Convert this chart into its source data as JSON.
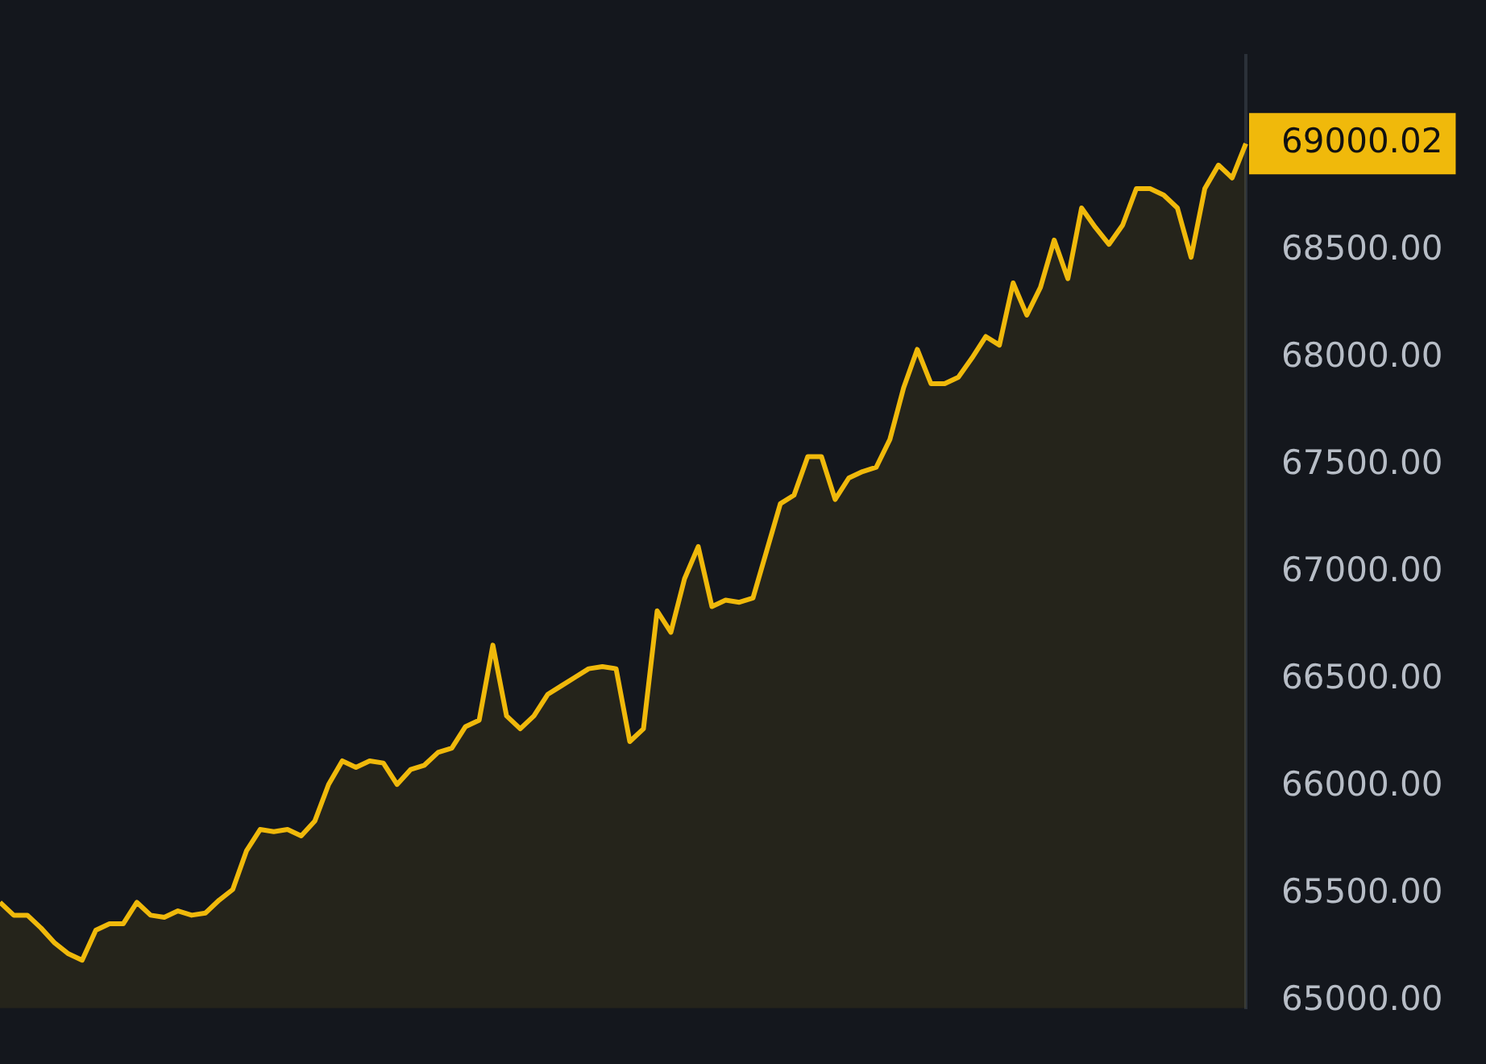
{
  "chart_data": {
    "type": "area",
    "categories": [
      null,
      null,
      null,
      null,
      null,
      null,
      null,
      null,
      null,
      null,
      null,
      null,
      null,
      null,
      null,
      null,
      null,
      null,
      null,
      null,
      null,
      null,
      null,
      null,
      null,
      null,
      null,
      null,
      null,
      null,
      null,
      null,
      null,
      null,
      null,
      null,
      null,
      null,
      null,
      null,
      null,
      null,
      null,
      null,
      null,
      null,
      null,
      null,
      null,
      null,
      null,
      null,
      null,
      null,
      null,
      null,
      null,
      null,
      null,
      null,
      null,
      null,
      null,
      null,
      null,
      null,
      null,
      null,
      null,
      null,
      null,
      null,
      null,
      null,
      null,
      null,
      null,
      null,
      null,
      null,
      null,
      null,
      null,
      null,
      null,
      null,
      null,
      null,
      null,
      null,
      null,
      null
    ],
    "series": [
      {
        "color": "#f0b90b",
        "values": [
          65460,
          65400,
          65400,
          65340,
          65270,
          65220,
          65190,
          65330,
          65360,
          65360,
          65460,
          65400,
          65390,
          65420,
          65400,
          65410,
          65470,
          65520,
          65700,
          65800,
          65790,
          65800,
          65770,
          65840,
          66010,
          66120,
          66090,
          66120,
          66110,
          66010,
          66080,
          66100,
          66160,
          66180,
          66280,
          66310,
          66660,
          66330,
          66270,
          66330,
          66430,
          66470,
          66510,
          66550,
          66560,
          66550,
          66210,
          66270,
          66820,
          66720,
          66970,
          67120,
          66840,
          66870,
          66860,
          66880,
          67100,
          67320,
          67360,
          67540,
          67540,
          67340,
          67440,
          67470,
          67490,
          67620,
          67860,
          68040,
          67880,
          67880,
          67910,
          68000,
          68100,
          68060,
          68350,
          68200,
          68330,
          68550,
          68370,
          68700,
          68610,
          68530,
          68620,
          68790,
          68790,
          68760,
          68700,
          68470,
          68790,
          68900,
          68840,
          69000
        ]
      }
    ],
    "ylim": [
      64966,
      69410
    ],
    "yticks": [
      {
        "value": 65000,
        "label": "65000.00"
      },
      {
        "value": 65500,
        "label": "65500.00"
      },
      {
        "value": 66000,
        "label": "66000.00"
      },
      {
        "value": 66500,
        "label": "66500.00"
      },
      {
        "value": 67000,
        "label": "67000.00"
      },
      {
        "value": 67500,
        "label": "67500.00"
      },
      {
        "value": 68000,
        "label": "68000.00"
      },
      {
        "value": 68500,
        "label": "68500.00"
      }
    ],
    "annotations": [
      "69000.02"
    ],
    "legend": false,
    "tick_labels": "y"
  }
}
